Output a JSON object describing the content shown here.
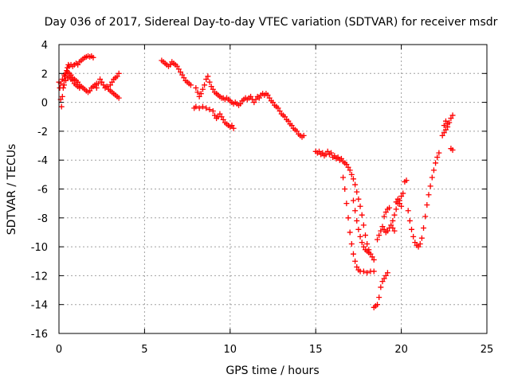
{
  "chart_data": {
    "type": "scatter",
    "title": "Day 036 of 2017, Sidereal Day-to-day VTEC variation (SDTVAR) for receiver msdr",
    "xlabel": "GPS time / hours",
    "ylabel": "SDTVAR / TECUs",
    "xlim": [
      0,
      25
    ],
    "ylim": [
      -16,
      4
    ],
    "xticks": [
      "0",
      "5",
      "10",
      "15",
      "20",
      "25"
    ],
    "yticks": [
      "4",
      "2",
      "0",
      "-2",
      "-4",
      "-6",
      "-8",
      "-10",
      "-12",
      "-14",
      "-16"
    ],
    "grid": true,
    "marker": "plus",
    "color": "#ff0000",
    "series": [
      {
        "points": [
          [
            0.0,
            1.4
          ],
          [
            0.05,
            1.0
          ],
          [
            0.1,
            0.2
          ],
          [
            0.15,
            -0.3
          ],
          [
            0.2,
            0.4
          ],
          [
            0.25,
            1.0
          ],
          [
            0.3,
            1.5
          ],
          [
            0.35,
            1.8
          ],
          [
            0.4,
            2.0
          ],
          [
            0.45,
            2.2
          ],
          [
            0.5,
            2.4
          ],
          [
            0.55,
            2.6
          ],
          [
            0.6,
            2.5
          ],
          [
            0.7,
            2.6
          ],
          [
            0.8,
            2.5
          ],
          [
            0.9,
            2.6
          ],
          [
            1.0,
            2.7
          ],
          [
            1.1,
            2.6
          ],
          [
            1.2,
            2.8
          ],
          [
            1.3,
            2.9
          ],
          [
            1.4,
            3.0
          ],
          [
            1.5,
            3.1
          ],
          [
            1.6,
            3.15
          ],
          [
            1.7,
            3.2
          ],
          [
            1.8,
            3.15
          ],
          [
            1.9,
            3.2
          ],
          [
            2.0,
            3.1
          ],
          [
            0.1,
            1.3
          ],
          [
            0.2,
            1.6
          ],
          [
            0.3,
            1.9
          ],
          [
            0.4,
            2.0
          ],
          [
            0.5,
            2.1
          ],
          [
            0.6,
            2.0
          ],
          [
            0.7,
            1.9
          ],
          [
            0.8,
            1.7
          ],
          [
            0.9,
            1.6
          ],
          [
            1.0,
            1.5
          ],
          [
            1.1,
            1.4
          ],
          [
            1.2,
            1.2
          ],
          [
            1.3,
            1.1
          ],
          [
            1.4,
            1.0
          ],
          [
            1.5,
            0.9
          ],
          [
            1.6,
            0.8
          ],
          [
            1.7,
            0.7
          ],
          [
            1.8,
            0.8
          ],
          [
            1.9,
            1.0
          ],
          [
            2.0,
            1.1
          ],
          [
            2.1,
            1.2
          ],
          [
            2.2,
            1.3
          ],
          [
            0.3,
            1.2
          ],
          [
            0.4,
            1.5
          ],
          [
            0.5,
            1.7
          ],
          [
            0.6,
            1.8
          ],
          [
            0.7,
            1.6
          ],
          [
            0.8,
            1.5
          ],
          [
            0.9,
            1.3
          ],
          [
            1.0,
            1.2
          ],
          [
            1.1,
            1.1
          ],
          [
            1.2,
            1.0
          ],
          [
            2.2,
            1.0
          ],
          [
            2.3,
            1.3
          ],
          [
            2.4,
            1.6
          ],
          [
            2.5,
            1.4
          ],
          [
            2.6,
            1.2
          ],
          [
            2.7,
            1.0
          ],
          [
            2.8,
            1.1
          ],
          [
            2.9,
            0.9
          ],
          [
            3.0,
            0.8
          ],
          [
            3.1,
            0.7
          ],
          [
            3.2,
            0.6
          ],
          [
            3.3,
            0.5
          ],
          [
            3.4,
            0.4
          ],
          [
            3.5,
            0.3
          ],
          [
            3.0,
            1.2
          ],
          [
            3.1,
            1.4
          ],
          [
            3.2,
            1.6
          ],
          [
            3.3,
            1.7
          ],
          [
            3.4,
            1.8
          ],
          [
            3.5,
            2.0
          ],
          [
            6.0,
            2.9
          ],
          [
            6.1,
            2.8
          ],
          [
            6.2,
            2.7
          ],
          [
            6.3,
            2.6
          ],
          [
            6.4,
            2.5
          ],
          [
            6.5,
            2.6
          ],
          [
            6.6,
            2.8
          ],
          [
            6.7,
            2.7
          ],
          [
            6.8,
            2.6
          ],
          [
            6.9,
            2.5
          ],
          [
            7.0,
            2.3
          ],
          [
            7.1,
            2.1
          ],
          [
            7.2,
            1.9
          ],
          [
            7.3,
            1.7
          ],
          [
            7.4,
            1.5
          ],
          [
            7.5,
            1.4
          ],
          [
            7.6,
            1.3
          ],
          [
            7.7,
            1.2
          ],
          [
            8.0,
            1.0
          ],
          [
            8.1,
            0.7
          ],
          [
            8.2,
            0.4
          ],
          [
            8.3,
            0.6
          ],
          [
            8.4,
            0.9
          ],
          [
            8.5,
            1.2
          ],
          [
            8.6,
            1.6
          ],
          [
            8.7,
            1.8
          ],
          [
            8.8,
            1.4
          ],
          [
            8.9,
            1.1
          ],
          [
            9.0,
            0.9
          ],
          [
            9.1,
            0.7
          ],
          [
            9.2,
            0.6
          ],
          [
            9.3,
            0.5
          ],
          [
            9.4,
            0.4
          ],
          [
            9.5,
            0.3
          ],
          [
            9.6,
            0.3
          ],
          [
            9.7,
            0.2
          ],
          [
            9.8,
            0.3
          ],
          [
            9.9,
            0.2
          ],
          [
            10.0,
            0.1
          ],
          [
            10.1,
            0.0
          ],
          [
            10.2,
            -0.1
          ],
          [
            10.3,
            0.0
          ],
          [
            10.4,
            -0.1
          ],
          [
            10.5,
            -0.2
          ],
          [
            7.9,
            -0.4
          ],
          [
            8.0,
            -0.3
          ],
          [
            8.2,
            -0.4
          ],
          [
            8.4,
            -0.3
          ],
          [
            8.6,
            -0.4
          ],
          [
            8.8,
            -0.5
          ],
          [
            9.0,
            -0.6
          ],
          [
            9.1,
            -0.9
          ],
          [
            9.2,
            -1.1
          ],
          [
            9.3,
            -1.0
          ],
          [
            9.4,
            -0.8
          ],
          [
            9.5,
            -1.0
          ],
          [
            9.6,
            -1.2
          ],
          [
            9.7,
            -1.4
          ],
          [
            9.8,
            -1.5
          ],
          [
            9.9,
            -1.6
          ],
          [
            10.0,
            -1.7
          ],
          [
            10.1,
            -1.6
          ],
          [
            10.2,
            -1.8
          ],
          [
            10.6,
            -0.1
          ],
          [
            10.7,
            0.1
          ],
          [
            10.8,
            0.2
          ],
          [
            10.9,
            0.3
          ],
          [
            11.0,
            0.2
          ],
          [
            11.1,
            0.3
          ],
          [
            11.2,
            0.4
          ],
          [
            11.3,
            0.2
          ],
          [
            11.4,
            0.0
          ],
          [
            11.5,
            0.2
          ],
          [
            11.6,
            0.4
          ],
          [
            11.7,
            0.3
          ],
          [
            11.8,
            0.5
          ],
          [
            11.9,
            0.6
          ],
          [
            12.0,
            0.5
          ],
          [
            12.1,
            0.6
          ],
          [
            12.2,
            0.5
          ],
          [
            12.3,
            0.3
          ],
          [
            12.4,
            0.1
          ],
          [
            12.5,
            0.0
          ],
          [
            12.6,
            -0.2
          ],
          [
            12.7,
            -0.3
          ],
          [
            12.8,
            -0.4
          ],
          [
            12.9,
            -0.6
          ],
          [
            13.0,
            -0.8
          ],
          [
            13.1,
            -0.9
          ],
          [
            13.2,
            -1.0
          ],
          [
            13.3,
            -1.2
          ],
          [
            13.4,
            -1.3
          ],
          [
            13.5,
            -1.5
          ],
          [
            13.6,
            -1.6
          ],
          [
            13.7,
            -1.8
          ],
          [
            13.8,
            -1.9
          ],
          [
            13.9,
            -2.0
          ],
          [
            14.0,
            -2.2
          ],
          [
            14.1,
            -2.3
          ],
          [
            14.2,
            -2.4
          ],
          [
            14.3,
            -2.3
          ],
          [
            15.0,
            -3.4
          ],
          [
            15.1,
            -3.5
          ],
          [
            15.2,
            -3.4
          ],
          [
            15.3,
            -3.6
          ],
          [
            15.4,
            -3.5
          ],
          [
            15.5,
            -3.7
          ],
          [
            15.6,
            -3.6
          ],
          [
            15.7,
            -3.4
          ],
          [
            15.8,
            -3.6
          ],
          [
            15.9,
            -3.5
          ],
          [
            16.0,
            -3.8
          ],
          [
            16.1,
            -3.7
          ],
          [
            16.2,
            -3.9
          ],
          [
            16.3,
            -3.8
          ],
          [
            16.4,
            -4.0
          ],
          [
            16.5,
            -3.9
          ],
          [
            16.6,
            -4.1
          ],
          [
            16.7,
            -4.2
          ],
          [
            16.8,
            -4.3
          ],
          [
            16.9,
            -4.5
          ],
          [
            17.0,
            -4.7
          ],
          [
            17.1,
            -5.0
          ],
          [
            17.2,
            -5.3
          ],
          [
            17.3,
            -5.7
          ],
          [
            17.4,
            -6.2
          ],
          [
            17.5,
            -6.7
          ],
          [
            17.6,
            -7.2
          ],
          [
            17.7,
            -7.8
          ],
          [
            17.8,
            -8.5
          ],
          [
            17.9,
            -9.2
          ],
          [
            18.0,
            -9.8
          ],
          [
            18.1,
            -10.2
          ],
          [
            18.2,
            -10.5
          ],
          [
            18.3,
            -10.7
          ],
          [
            18.4,
            -10.9
          ],
          [
            16.6,
            -5.2
          ],
          [
            16.7,
            -6.0
          ],
          [
            16.8,
            -7.0
          ],
          [
            16.9,
            -8.0
          ],
          [
            17.0,
            -9.0
          ],
          [
            17.1,
            -9.8
          ],
          [
            17.2,
            -10.5
          ],
          [
            17.3,
            -11.0
          ],
          [
            17.4,
            -11.4
          ],
          [
            17.5,
            -11.6
          ],
          [
            17.6,
            -11.7
          ],
          [
            17.8,
            -11.7
          ],
          [
            18.0,
            -11.8
          ],
          [
            18.2,
            -11.7
          ],
          [
            18.4,
            -11.7
          ],
          [
            17.2,
            -6.8
          ],
          [
            17.3,
            -7.5
          ],
          [
            17.4,
            -8.2
          ],
          [
            17.5,
            -8.8
          ],
          [
            17.6,
            -9.3
          ],
          [
            17.7,
            -9.7
          ],
          [
            17.8,
            -10.0
          ],
          [
            17.9,
            -10.2
          ],
          [
            18.0,
            -10.3
          ],
          [
            18.1,
            -10.4
          ],
          [
            18.4,
            -14.2
          ],
          [
            18.5,
            -14.1
          ],
          [
            18.6,
            -14.0
          ],
          [
            18.7,
            -13.5
          ],
          [
            18.8,
            -12.8
          ],
          [
            18.9,
            -12.4
          ],
          [
            19.0,
            -12.2
          ],
          [
            19.1,
            -12.0
          ],
          [
            19.2,
            -11.8
          ],
          [
            18.6,
            -9.5
          ],
          [
            18.7,
            -9.2
          ],
          [
            18.8,
            -8.9
          ],
          [
            18.9,
            -8.6
          ],
          [
            19.0,
            -8.8
          ],
          [
            19.1,
            -9.0
          ],
          [
            19.2,
            -8.9
          ],
          [
            19.3,
            -8.7
          ],
          [
            19.4,
            -8.5
          ],
          [
            19.5,
            -8.7
          ],
          [
            19.6,
            -8.9
          ],
          [
            19.0,
            -7.9
          ],
          [
            19.1,
            -7.6
          ],
          [
            19.2,
            -7.4
          ],
          [
            19.3,
            -7.3
          ],
          [
            19.5,
            -8.2
          ],
          [
            19.6,
            -7.8
          ],
          [
            19.7,
            -7.4
          ],
          [
            19.8,
            -7.0
          ],
          [
            19.9,
            -6.8
          ],
          [
            20.0,
            -6.5
          ],
          [
            20.1,
            -6.3
          ],
          [
            19.7,
            -6.9
          ],
          [
            19.8,
            -6.7
          ],
          [
            19.9,
            -7.0
          ],
          [
            20.0,
            -7.2
          ],
          [
            20.2,
            -5.5
          ],
          [
            20.3,
            -5.4
          ],
          [
            20.4,
            -7.5
          ],
          [
            20.5,
            -8.2
          ],
          [
            20.6,
            -8.8
          ],
          [
            20.7,
            -9.3
          ],
          [
            20.8,
            -9.7
          ],
          [
            20.9,
            -9.9
          ],
          [
            21.0,
            -10.0
          ],
          [
            21.1,
            -9.8
          ],
          [
            21.2,
            -9.4
          ],
          [
            21.3,
            -8.7
          ],
          [
            21.4,
            -7.9
          ],
          [
            21.5,
            -7.1
          ],
          [
            21.6,
            -6.4
          ],
          [
            21.7,
            -5.8
          ],
          [
            21.8,
            -5.2
          ],
          [
            21.9,
            -4.7
          ],
          [
            22.0,
            -4.2
          ],
          [
            22.1,
            -3.8
          ],
          [
            22.2,
            -3.5
          ],
          [
            22.4,
            -2.3
          ],
          [
            22.5,
            -2.1
          ],
          [
            22.6,
            -1.9
          ],
          [
            22.7,
            -1.7
          ],
          [
            22.8,
            -1.4
          ],
          [
            22.9,
            -1.1
          ],
          [
            23.0,
            -0.9
          ],
          [
            22.5,
            -1.6
          ],
          [
            22.6,
            -1.3
          ],
          [
            22.7,
            -1.5
          ],
          [
            22.9,
            -3.2
          ],
          [
            23.0,
            -3.3
          ]
        ]
      }
    ]
  }
}
